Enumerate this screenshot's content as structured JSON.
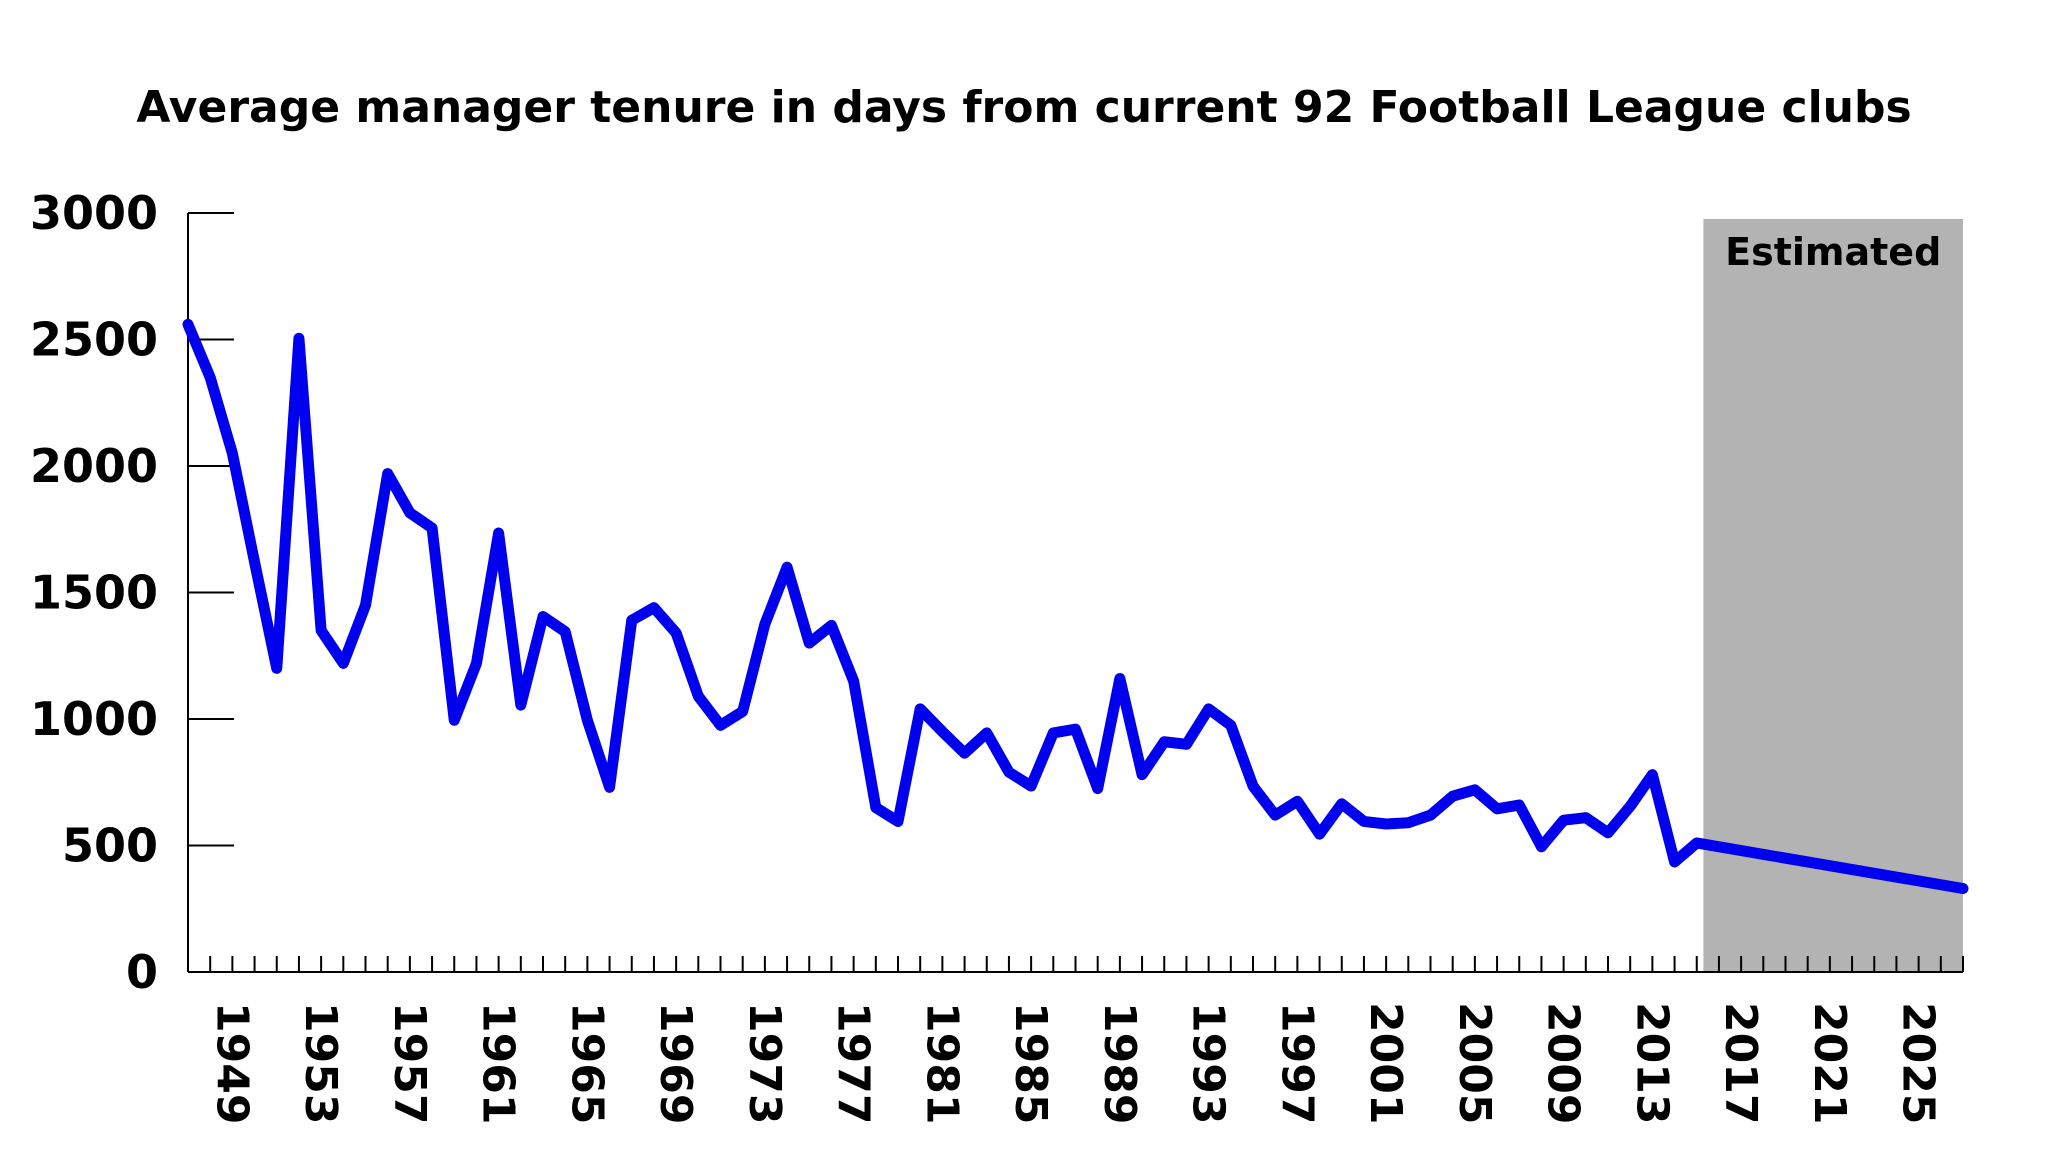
{
  "chart_data": {
    "type": "line",
    "title": "Average manager tenure in days from current 92 Football League clubs",
    "xlabel": "",
    "ylabel": "",
    "ylim": [
      0,
      3000
    ],
    "xlim": [
      1947,
      2027
    ],
    "grid": false,
    "y_ticks": [
      "0",
      "500",
      "1000",
      "1500",
      "2000",
      "2500",
      "3000"
    ],
    "x_ticks": [
      "1949",
      "1953",
      "1957",
      "1961",
      "1965",
      "1969",
      "1973",
      "1977",
      "1981",
      "1985",
      "1989",
      "1993",
      "1997",
      "2001",
      "2005",
      "2009",
      "2013",
      "2017",
      "2021",
      "2025"
    ],
    "line_color": "#0000ee",
    "shade_color": "#b3b3b3",
    "annotation": {
      "label": "Estimated",
      "from": 2015.3,
      "to": 2027
    },
    "x": [
      1947,
      1948,
      1949,
      1950,
      1951,
      1952,
      1953,
      1954,
      1955,
      1956,
      1957,
      1958,
      1959,
      1960,
      1961,
      1962,
      1963,
      1964,
      1965,
      1966,
      1967,
      1968,
      1969,
      1970,
      1971,
      1972,
      1973,
      1974,
      1975,
      1976,
      1977,
      1978,
      1979,
      1980,
      1981,
      1982,
      1983,
      1984,
      1985,
      1986,
      1987,
      1988,
      1989,
      1990,
      1991,
      1992,
      1993,
      1994,
      1995,
      1996,
      1997,
      1998,
      1999,
      2000,
      2001,
      2002,
      2003,
      2004,
      2005,
      2006,
      2007,
      2008,
      2009,
      2010,
      2011,
      2012,
      2013,
      2014,
      2015,
      2027
    ],
    "values": [
      2560,
      2350,
      2050,
      1620,
      1200,
      2505,
      1350,
      1220,
      1450,
      1970,
      1815,
      1755,
      995,
      1220,
      1735,
      1055,
      1405,
      1345,
      995,
      730,
      1390,
      1440,
      1340,
      1090,
      975,
      1030,
      1375,
      1600,
      1300,
      1370,
      1150,
      650,
      595,
      1040,
      950,
      865,
      945,
      790,
      735,
      945,
      960,
      725,
      1160,
      780,
      910,
      900,
      1040,
      975,
      735,
      620,
      675,
      545,
      665,
      595,
      585,
      590,
      620,
      695,
      720,
      645,
      660,
      495,
      600,
      610,
      550,
      655,
      780,
      435,
      510,
      330
    ]
  }
}
